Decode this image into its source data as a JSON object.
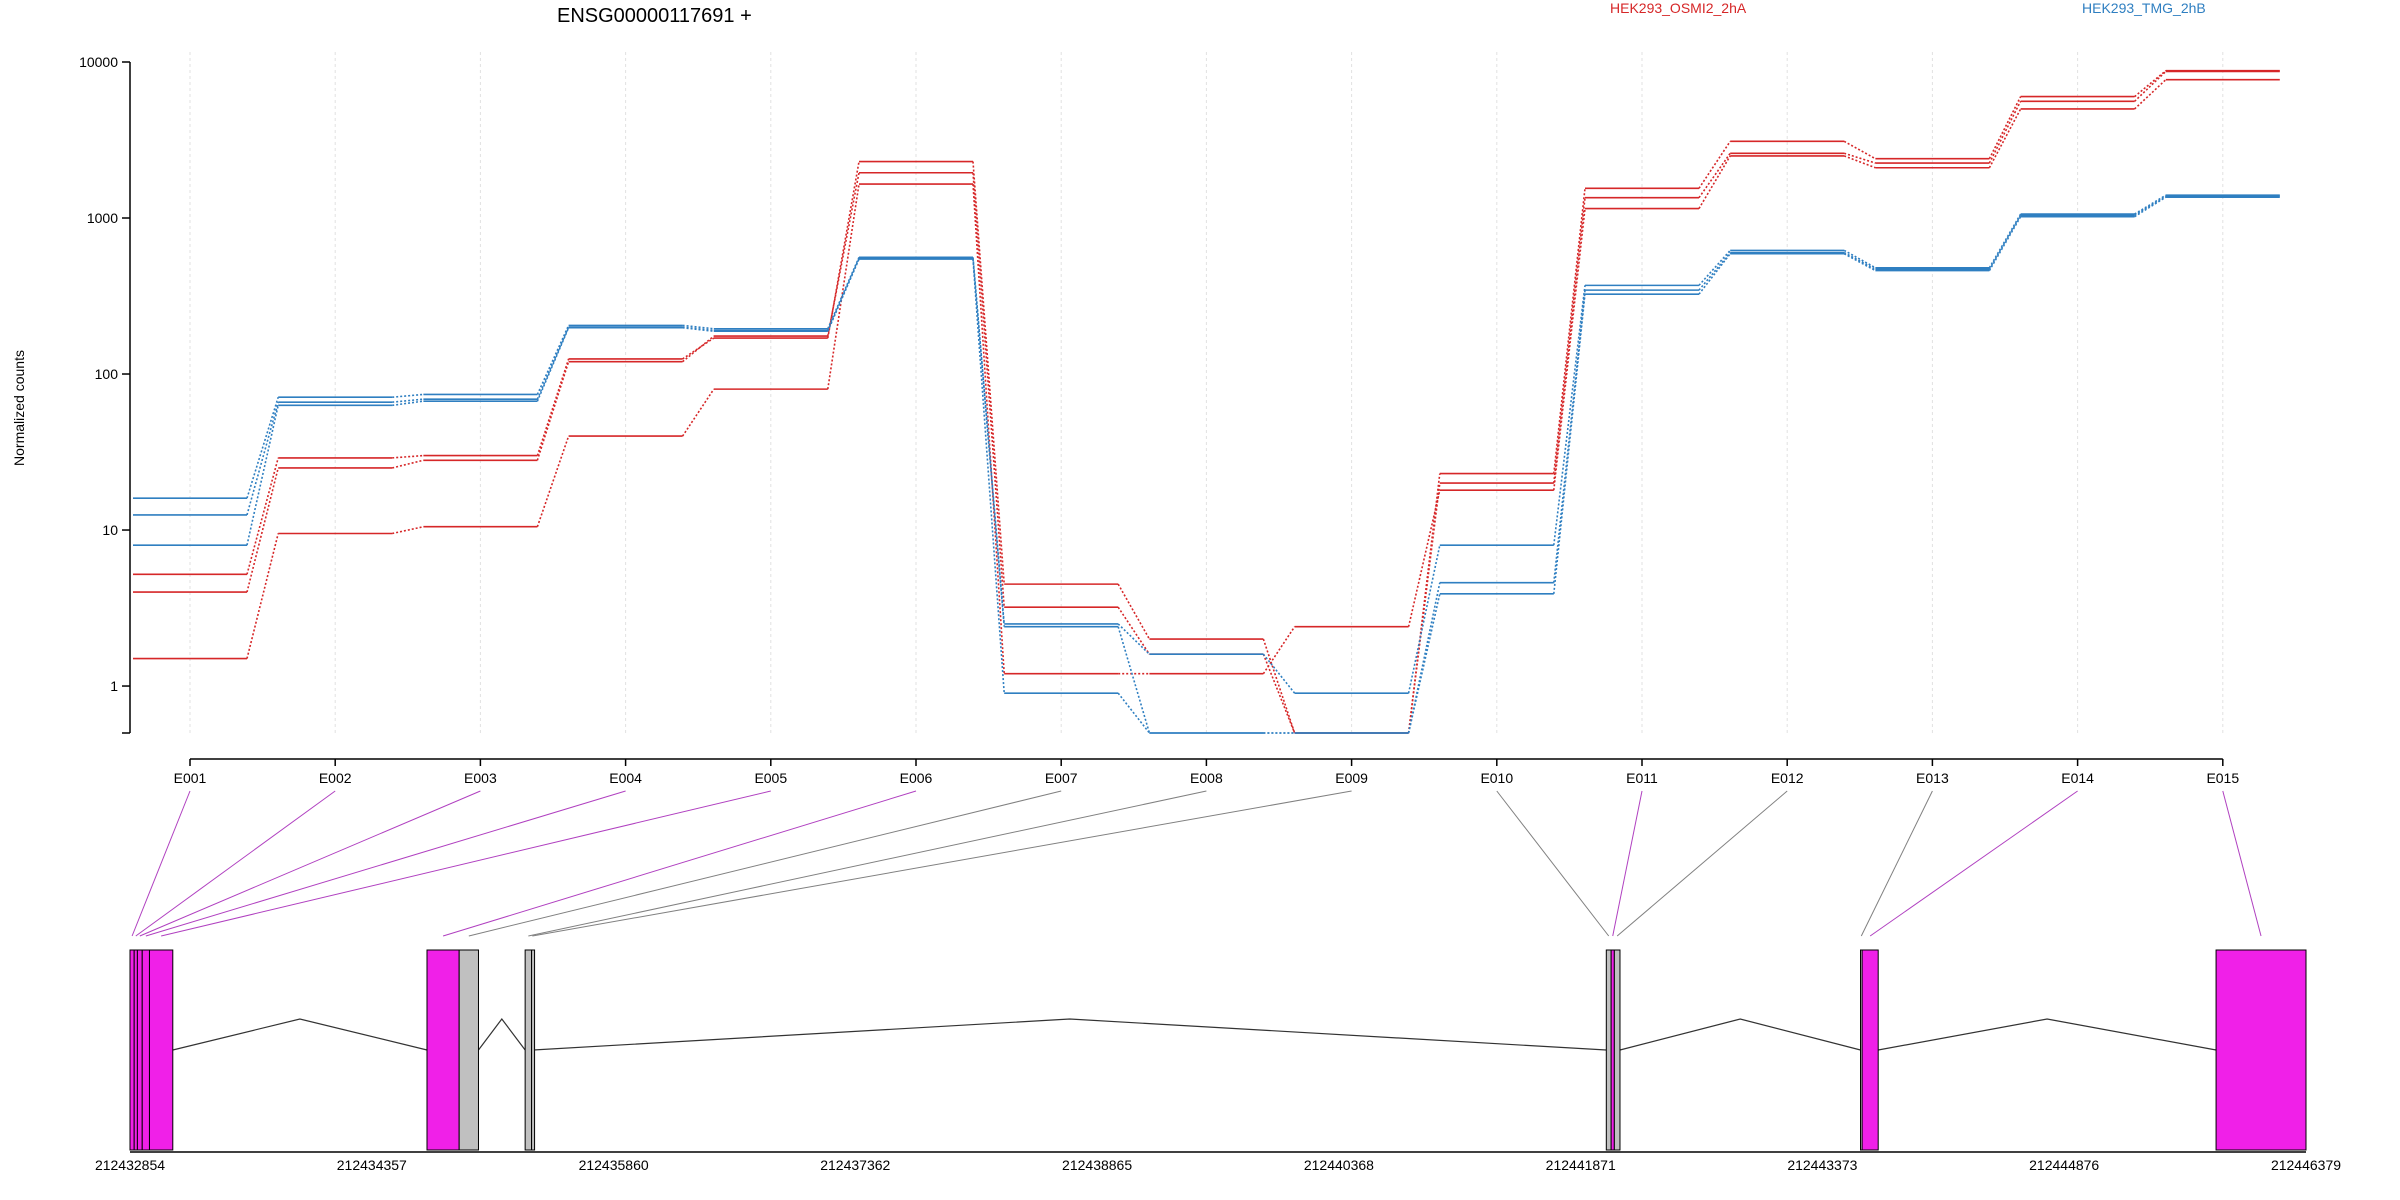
{
  "chart_data": [
    {
      "type": "line",
      "title": "ENSG00000117691 +",
      "ylabel": "Normalized counts",
      "xlabel": "",
      "yscale": "log",
      "ylim": [
        0.5,
        10000
      ],
      "ytick_labels": [
        "10000",
        "1000",
        "100",
        "10",
        "1"
      ],
      "ytick_values": [
        10000,
        1000,
        100,
        10,
        1
      ],
      "categories": [
        "E001",
        "E002",
        "E003",
        "E004",
        "E005",
        "E006",
        "E007",
        "E008",
        "E009",
        "E010",
        "E011",
        "E012",
        "E013",
        "E014",
        "E015"
      ],
      "legend": [
        {
          "name": "HEK293_OSMI2_2hA",
          "color": "#d62728"
        },
        {
          "name": "HEK293_TMG_2hB",
          "color": "#2f7fc1"
        }
      ],
      "legend_placement": "top",
      "grid": "vertical dotted",
      "series": [
        {
          "group": "HEK293_OSMI2_2hA",
          "values": [
            5.2,
            29,
            30,
            125,
            170,
            2300,
            4.5,
            2.0,
            0.5,
            23,
            1550,
            3100,
            2400,
            6000,
            8800
          ]
        },
        {
          "group": "HEK293_OSMI2_2hA",
          "values": [
            4.0,
            25,
            28,
            120,
            175,
            1950,
            3.2,
            1.6,
            0.5,
            20,
            1350,
            2600,
            2250,
            5600,
            8700
          ]
        },
        {
          "group": "HEK293_OSMI2_2hA",
          "values": [
            1.5,
            9.5,
            10.5,
            40,
            80,
            1650,
            1.2,
            1.2,
            2.4,
            18,
            1150,
            2500,
            2100,
            5000,
            7700
          ]
        },
        {
          "group": "HEK293_TMG_2hB",
          "values": [
            16,
            71,
            74,
            205,
            195,
            560,
            2.5,
            1.6,
            0.9,
            8.0,
            370,
            620,
            480,
            1060,
            1400
          ]
        },
        {
          "group": "HEK293_TMG_2hB",
          "values": [
            12.5,
            66,
            69,
            200,
            190,
            550,
            2.4,
            0.5,
            0.5,
            4.6,
            345,
            600,
            470,
            1040,
            1380
          ]
        },
        {
          "group": "HEK293_TMG_2hB",
          "values": [
            8.0,
            63,
            67,
            198,
            188,
            545,
            0.9,
            0.5,
            0.5,
            3.9,
            325,
            590,
            460,
            1020,
            1360
          ]
        }
      ],
      "grid_index_note": ""
    },
    {
      "type": "gene-model",
      "genomic_tick_labels": [
        "212432854",
        "212434357",
        "212435860",
        "212437362",
        "212438865",
        "212440368",
        "212441871",
        "212443373",
        "212444876",
        "212446379"
      ],
      "genomic_ticks": [
        212432854,
        212434357,
        212435860,
        212437362,
        212438865,
        212440368,
        212441871,
        212443373,
        212444876,
        212446379
      ],
      "genomic_range": [
        212432854,
        212446379
      ],
      "exons": [
        {
          "id": "E001",
          "start": 212432854,
          "end": 212432880,
          "status": "significant"
        },
        {
          "id": "E002",
          "start": 212432880,
          "end": 212432900,
          "status": "significant"
        },
        {
          "id": "E003",
          "start": 212432900,
          "end": 212432930,
          "status": "significant"
        },
        {
          "id": "E004",
          "start": 212432930,
          "end": 212432975,
          "status": "significant"
        },
        {
          "id": "E005",
          "start": 212432975,
          "end": 212433120,
          "status": "significant"
        },
        {
          "id": "E006",
          "start": 212434700,
          "end": 212434900,
          "status": "significant"
        },
        {
          "id": "E007",
          "start": 212434900,
          "end": 212435020,
          "status": "not-significant"
        },
        {
          "id": "E008",
          "start": 212435310,
          "end": 212435350,
          "status": "not-significant"
        },
        {
          "id": "E009",
          "start": 212435350,
          "end": 212435360,
          "status": "not-significant"
        },
        {
          "id": "E010",
          "start": 212442030,
          "end": 212442060,
          "status": "not-significant"
        },
        {
          "id": "E011",
          "start": 212442060,
          "end": 212442080,
          "status": "significant"
        },
        {
          "id": "E012",
          "start": 212442080,
          "end": 212442115,
          "status": "not-significant"
        },
        {
          "id": "E013",
          "start": 212443610,
          "end": 212443620,
          "status": "not-significant"
        },
        {
          "id": "E014",
          "start": 212443620,
          "end": 212443720,
          "status": "significant"
        },
        {
          "id": "E015",
          "start": 212445820,
          "end": 212446379,
          "status": "significant"
        }
      ],
      "colors": {
        "significant": "#f020e8",
        "not-significant": "#c0c0c0",
        "significant_link": "#b040c0",
        "not-significant_link": "#808080"
      }
    }
  ]
}
